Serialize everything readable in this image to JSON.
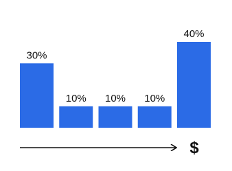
{
  "chart_data": {
    "type": "bar",
    "values": [
      30,
      10,
      10,
      10,
      40
    ],
    "value_labels": [
      "30%",
      "10%",
      "10%",
      "10%",
      "40%"
    ],
    "color": "#2b6be6",
    "annotation": "$"
  }
}
